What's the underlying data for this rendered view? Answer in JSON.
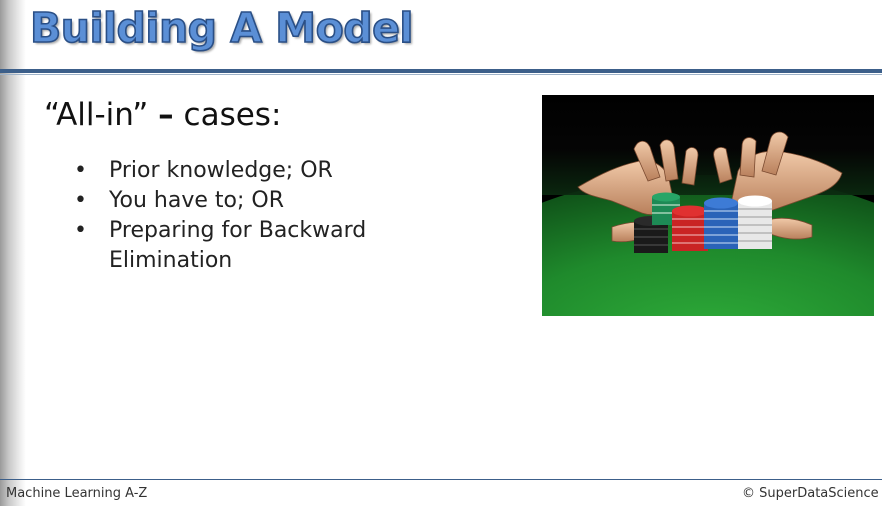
{
  "slide": {
    "title": "Building A Model",
    "heading": {
      "lead": "“All-in”",
      "dash": "–",
      "rest": "cases:"
    },
    "bullet_symbol": "•",
    "bullets": [
      "Prior knowledge; OR",
      "You have to; OR",
      "Preparing for Backward Elimination"
    ],
    "image_icon": "poker-chips-all-in-photo"
  },
  "footer": {
    "left": "Machine Learning A-Z",
    "right": "© SuperDataScience"
  },
  "colors": {
    "title_fill": "#5b8fd6",
    "title_outline": "#2a4f86",
    "rule": "#3c5f8a",
    "table_felt": "#1f8a2c"
  }
}
